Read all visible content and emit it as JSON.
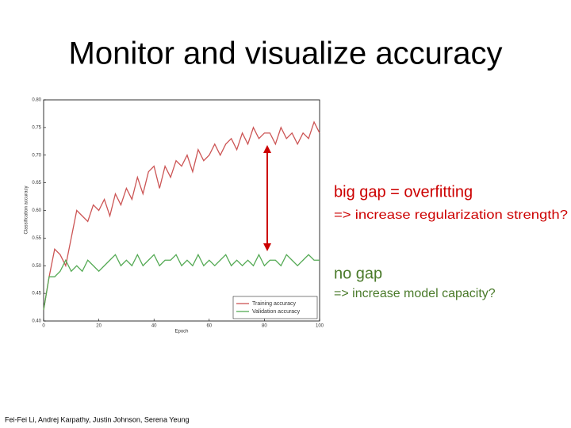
{
  "title": "Monitor and visualize accuracy",
  "chart_data": {
    "type": "line",
    "xlabel": "Epoch",
    "ylabel": "Classification accuracy",
    "x": [
      0,
      2,
      4,
      6,
      8,
      10,
      12,
      14,
      16,
      18,
      20,
      22,
      24,
      26,
      28,
      30,
      32,
      34,
      36,
      38,
      40,
      42,
      44,
      46,
      48,
      50,
      52,
      54,
      56,
      58,
      60,
      62,
      64,
      66,
      68,
      70,
      72,
      74,
      76,
      78,
      80,
      82,
      84,
      86,
      88,
      90,
      92,
      94,
      96,
      98,
      100
    ],
    "xlim": [
      0,
      100
    ],
    "xticks": [
      0,
      20,
      40,
      60,
      80,
      100
    ],
    "ylim": [
      0.4,
      0.8
    ],
    "yticks": [
      {
        "value": 0.4,
        "label": "0.40"
      },
      0.45,
      {
        "value": 0.5,
        "label": "0.50"
      },
      0.55,
      {
        "value": 0.6,
        "label": "0.60"
      },
      0.65,
      {
        "value": 0.7,
        "label": "0.70"
      },
      0.75,
      {
        "value": 0.8,
        "label": "0.80"
      }
    ],
    "legend": "lower right",
    "series": [
      {
        "name": "Training accuracy",
        "color": "#cc5555",
        "values": [
          0.42,
          0.48,
          0.53,
          0.52,
          0.5,
          0.55,
          0.6,
          0.59,
          0.58,
          0.61,
          0.6,
          0.62,
          0.59,
          0.63,
          0.61,
          0.64,
          0.62,
          0.66,
          0.63,
          0.67,
          0.68,
          0.64,
          0.68,
          0.66,
          0.69,
          0.68,
          0.7,
          0.67,
          0.71,
          0.69,
          0.7,
          0.72,
          0.7,
          0.72,
          0.73,
          0.71,
          0.74,
          0.72,
          0.75,
          0.73,
          0.74,
          0.74,
          0.72,
          0.75,
          0.73,
          0.74,
          0.72,
          0.74,
          0.73,
          0.76,
          0.74
        ]
      },
      {
        "name": "Validation accuracy",
        "color": "#55aa55",
        "values": [
          0.42,
          0.48,
          0.48,
          0.49,
          0.51,
          0.49,
          0.5,
          0.49,
          0.51,
          0.5,
          0.49,
          0.5,
          0.51,
          0.52,
          0.5,
          0.51,
          0.5,
          0.52,
          0.5,
          0.51,
          0.52,
          0.5,
          0.51,
          0.51,
          0.52,
          0.5,
          0.51,
          0.5,
          0.52,
          0.5,
          0.51,
          0.5,
          0.51,
          0.52,
          0.5,
          0.51,
          0.5,
          0.51,
          0.5,
          0.52,
          0.5,
          0.51,
          0.51,
          0.5,
          0.52,
          0.51,
          0.5,
          0.51,
          0.52,
          0.51,
          0.51
        ]
      }
    ]
  },
  "annotations": {
    "overfit": {
      "title": "big gap = overfitting",
      "action": "=> increase regularization strength?"
    },
    "nogap": {
      "title": "no gap",
      "action": "=> increase model capacity?"
    }
  },
  "footer": "Fei-Fei Li, Andrej Karpathy, Justin Johnson, Serena Yeung"
}
